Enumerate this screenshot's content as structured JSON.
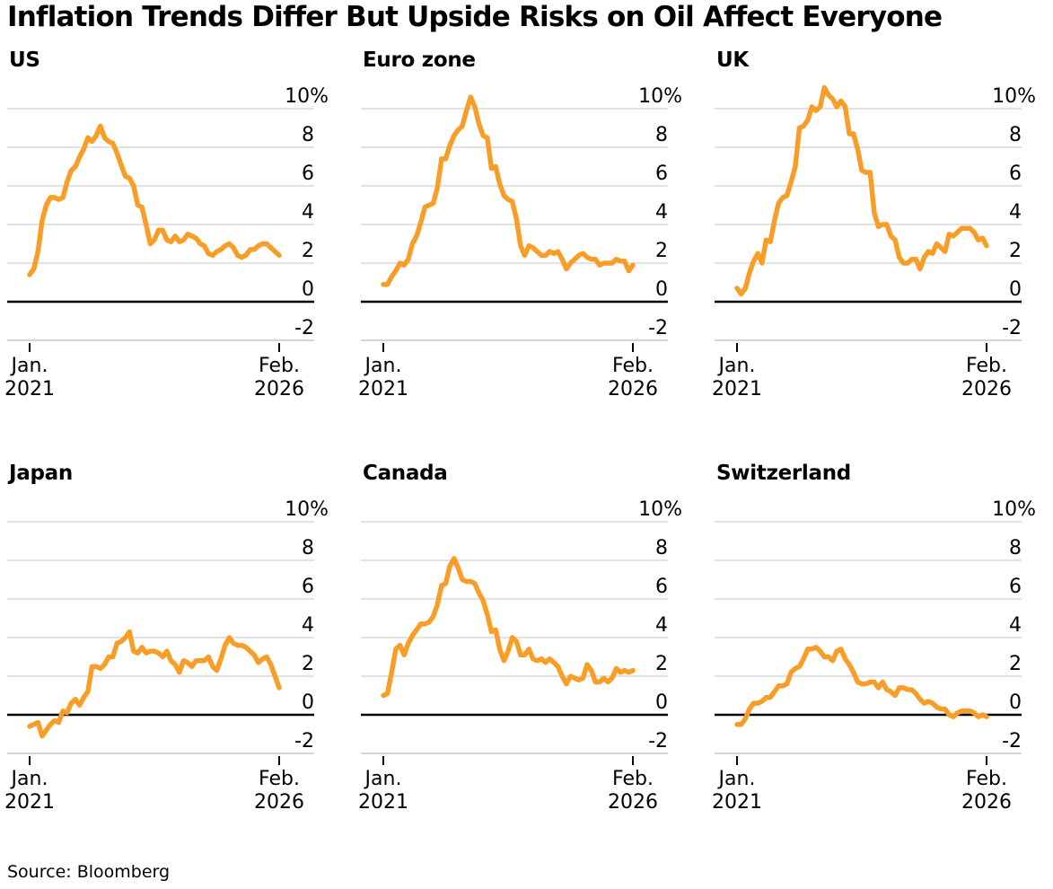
{
  "title": "Inflation Trends Differ But Upside Risks on Oil Affect Everyone",
  "source": "Source: Bloomberg",
  "colors": {
    "line": "#F89E28",
    "grid": "#D9D9D9",
    "zero_line": "#000000",
    "bottom_line": "#C7C7C7",
    "tick": "#000000",
    "text": "#000000",
    "background": "#FFFFFF"
  },
  "axis": {
    "y_ticks": [
      10,
      8,
      6,
      4,
      2,
      0,
      -2
    ],
    "y_top_label": "10%",
    "ylim": [
      -2,
      11.5
    ],
    "x_start_line1": "Jan.",
    "x_start_line2": "2021",
    "x_end_line1": "Feb.",
    "x_end_line2": "2026",
    "frequency": "monthly"
  },
  "chart_data": [
    {
      "type": "line",
      "title": "US",
      "unit": "% YoY",
      "x_start": "Jan. 2021",
      "x_end": "Feb. 2026",
      "ylim": [
        -2,
        11.5
      ],
      "values": [
        1.4,
        1.7,
        2.6,
        4.2,
        5.0,
        5.4,
        5.4,
        5.3,
        5.4,
        6.2,
        6.8,
        7.0,
        7.5,
        7.9,
        8.5,
        8.3,
        8.6,
        9.1,
        8.5,
        8.3,
        8.2,
        7.7,
        7.1,
        6.5,
        6.4,
        6.0,
        5.0,
        4.9,
        4.0,
        3.0,
        3.2,
        3.7,
        3.7,
        3.2,
        3.1,
        3.4,
        3.1,
        3.2,
        3.5,
        3.4,
        3.3,
        3.0,
        2.9,
        2.5,
        2.4,
        2.6,
        2.7,
        2.9,
        3.0,
        2.8,
        2.4,
        2.3,
        2.4,
        2.7,
        2.7,
        2.9,
        3.0,
        3.0,
        2.8,
        2.6,
        2.4
      ]
    },
    {
      "type": "line",
      "title": "Euro zone",
      "unit": "% YoY",
      "x_start": "Jan. 2021",
      "x_end": "Feb. 2026",
      "ylim": [
        -2,
        11.5
      ],
      "values": [
        0.9,
        0.9,
        1.3,
        1.6,
        2.0,
        1.9,
        2.2,
        3.0,
        3.4,
        4.1,
        4.9,
        5.0,
        5.1,
        5.9,
        7.4,
        7.4,
        8.1,
        8.6,
        8.9,
        9.1,
        9.9,
        10.6,
        10.1,
        9.2,
        8.6,
        8.5,
        6.9,
        7.0,
        6.1,
        5.5,
        5.3,
        5.2,
        4.3,
        2.9,
        2.4,
        2.9,
        2.8,
        2.6,
        2.4,
        2.4,
        2.6,
        2.5,
        2.6,
        2.2,
        1.7,
        2.0,
        2.2,
        2.4,
        2.5,
        2.3,
        2.2,
        2.2,
        1.9,
        2.0,
        2.0,
        2.0,
        2.2,
        2.1,
        2.1,
        1.6,
        1.9
      ]
    },
    {
      "type": "line",
      "title": "UK",
      "unit": "% YoY",
      "x_start": "Jan. 2021",
      "x_end": "Feb. 2026",
      "ylim": [
        -2,
        11.5
      ],
      "values": [
        0.7,
        0.4,
        0.7,
        1.5,
        2.1,
        2.5,
        2.0,
        3.2,
        3.1,
        4.2,
        5.1,
        5.4,
        5.5,
        6.2,
        7.0,
        9.0,
        9.1,
        9.4,
        10.1,
        9.9,
        10.1,
        11.1,
        10.7,
        10.5,
        10.1,
        10.4,
        10.1,
        8.7,
        8.7,
        7.9,
        6.8,
        6.7,
        6.7,
        4.6,
        3.9,
        4.0,
        4.0,
        3.4,
        3.2,
        2.3,
        2.0,
        2.0,
        2.2,
        2.2,
        1.7,
        2.3,
        2.6,
        2.5,
        3.0,
        2.8,
        2.6,
        3.5,
        3.4,
        3.6,
        3.8,
        3.8,
        3.8,
        3.6,
        3.2,
        3.3,
        2.9
      ]
    },
    {
      "type": "line",
      "title": "Japan",
      "unit": "% YoY",
      "x_start": "Jan. 2021",
      "x_end": "Feb. 2026",
      "ylim": [
        -2,
        11.5
      ],
      "values": [
        -0.6,
        -0.5,
        -0.4,
        -1.1,
        -0.8,
        -0.5,
        -0.3,
        -0.4,
        0.2,
        0.1,
        0.6,
        0.8,
        0.5,
        0.9,
        1.2,
        2.5,
        2.5,
        2.4,
        2.6,
        3.0,
        3.0,
        3.7,
        3.8,
        4.0,
        4.3,
        3.3,
        3.2,
        3.5,
        3.2,
        3.3,
        3.3,
        3.2,
        3.0,
        3.3,
        2.8,
        2.6,
        2.2,
        2.8,
        2.7,
        2.5,
        2.8,
        2.8,
        2.8,
        3.0,
        2.5,
        2.3,
        2.9,
        3.6,
        4.0,
        3.7,
        3.6,
        3.6,
        3.5,
        3.3,
        3.1,
        2.7,
        2.9,
        3.0,
        2.6,
        2.0,
        1.4
      ]
    },
    {
      "type": "line",
      "title": "Canada",
      "unit": "% YoY",
      "x_start": "Jan. 2021",
      "x_end": "Feb. 2026",
      "ylim": [
        -2,
        11.5
      ],
      "values": [
        1.0,
        1.1,
        2.2,
        3.4,
        3.6,
        3.1,
        3.7,
        4.1,
        4.4,
        4.7,
        4.7,
        4.8,
        5.1,
        5.7,
        6.7,
        6.8,
        7.7,
        8.1,
        7.6,
        7.0,
        6.9,
        6.9,
        6.8,
        6.3,
        5.9,
        5.2,
        4.3,
        4.4,
        3.4,
        2.8,
        3.3,
        4.0,
        3.8,
        3.1,
        3.1,
        3.4,
        2.9,
        2.8,
        2.9,
        2.7,
        2.9,
        2.7,
        2.5,
        2.0,
        1.6,
        2.0,
        1.9,
        1.8,
        1.9,
        2.6,
        2.3,
        1.7,
        1.7,
        1.9,
        1.7,
        1.9,
        2.4,
        2.2,
        2.3,
        2.2,
        2.3
      ]
    },
    {
      "type": "line",
      "title": "Switzerland",
      "unit": "% YoY",
      "x_start": "Jan. 2021",
      "x_end": "Feb. 2026",
      "ylim": [
        -2,
        11.5
      ],
      "values": [
        -0.5,
        -0.5,
        -0.2,
        0.3,
        0.6,
        0.6,
        0.7,
        0.9,
        0.9,
        1.2,
        1.5,
        1.5,
        1.6,
        2.2,
        2.4,
        2.5,
        2.9,
        3.4,
        3.4,
        3.5,
        3.3,
        3.0,
        3.0,
        2.8,
        3.3,
        3.4,
        2.9,
        2.6,
        2.2,
        1.7,
        1.6,
        1.6,
        1.7,
        1.7,
        1.4,
        1.7,
        1.3,
        1.2,
        1.0,
        1.4,
        1.4,
        1.3,
        1.3,
        1.1,
        0.8,
        0.6,
        0.7,
        0.6,
        0.4,
        0.3,
        0.3,
        0.0,
        -0.1,
        0.1,
        0.2,
        0.2,
        0.2,
        0.1,
        -0.1,
        0.0,
        -0.1
      ]
    }
  ]
}
